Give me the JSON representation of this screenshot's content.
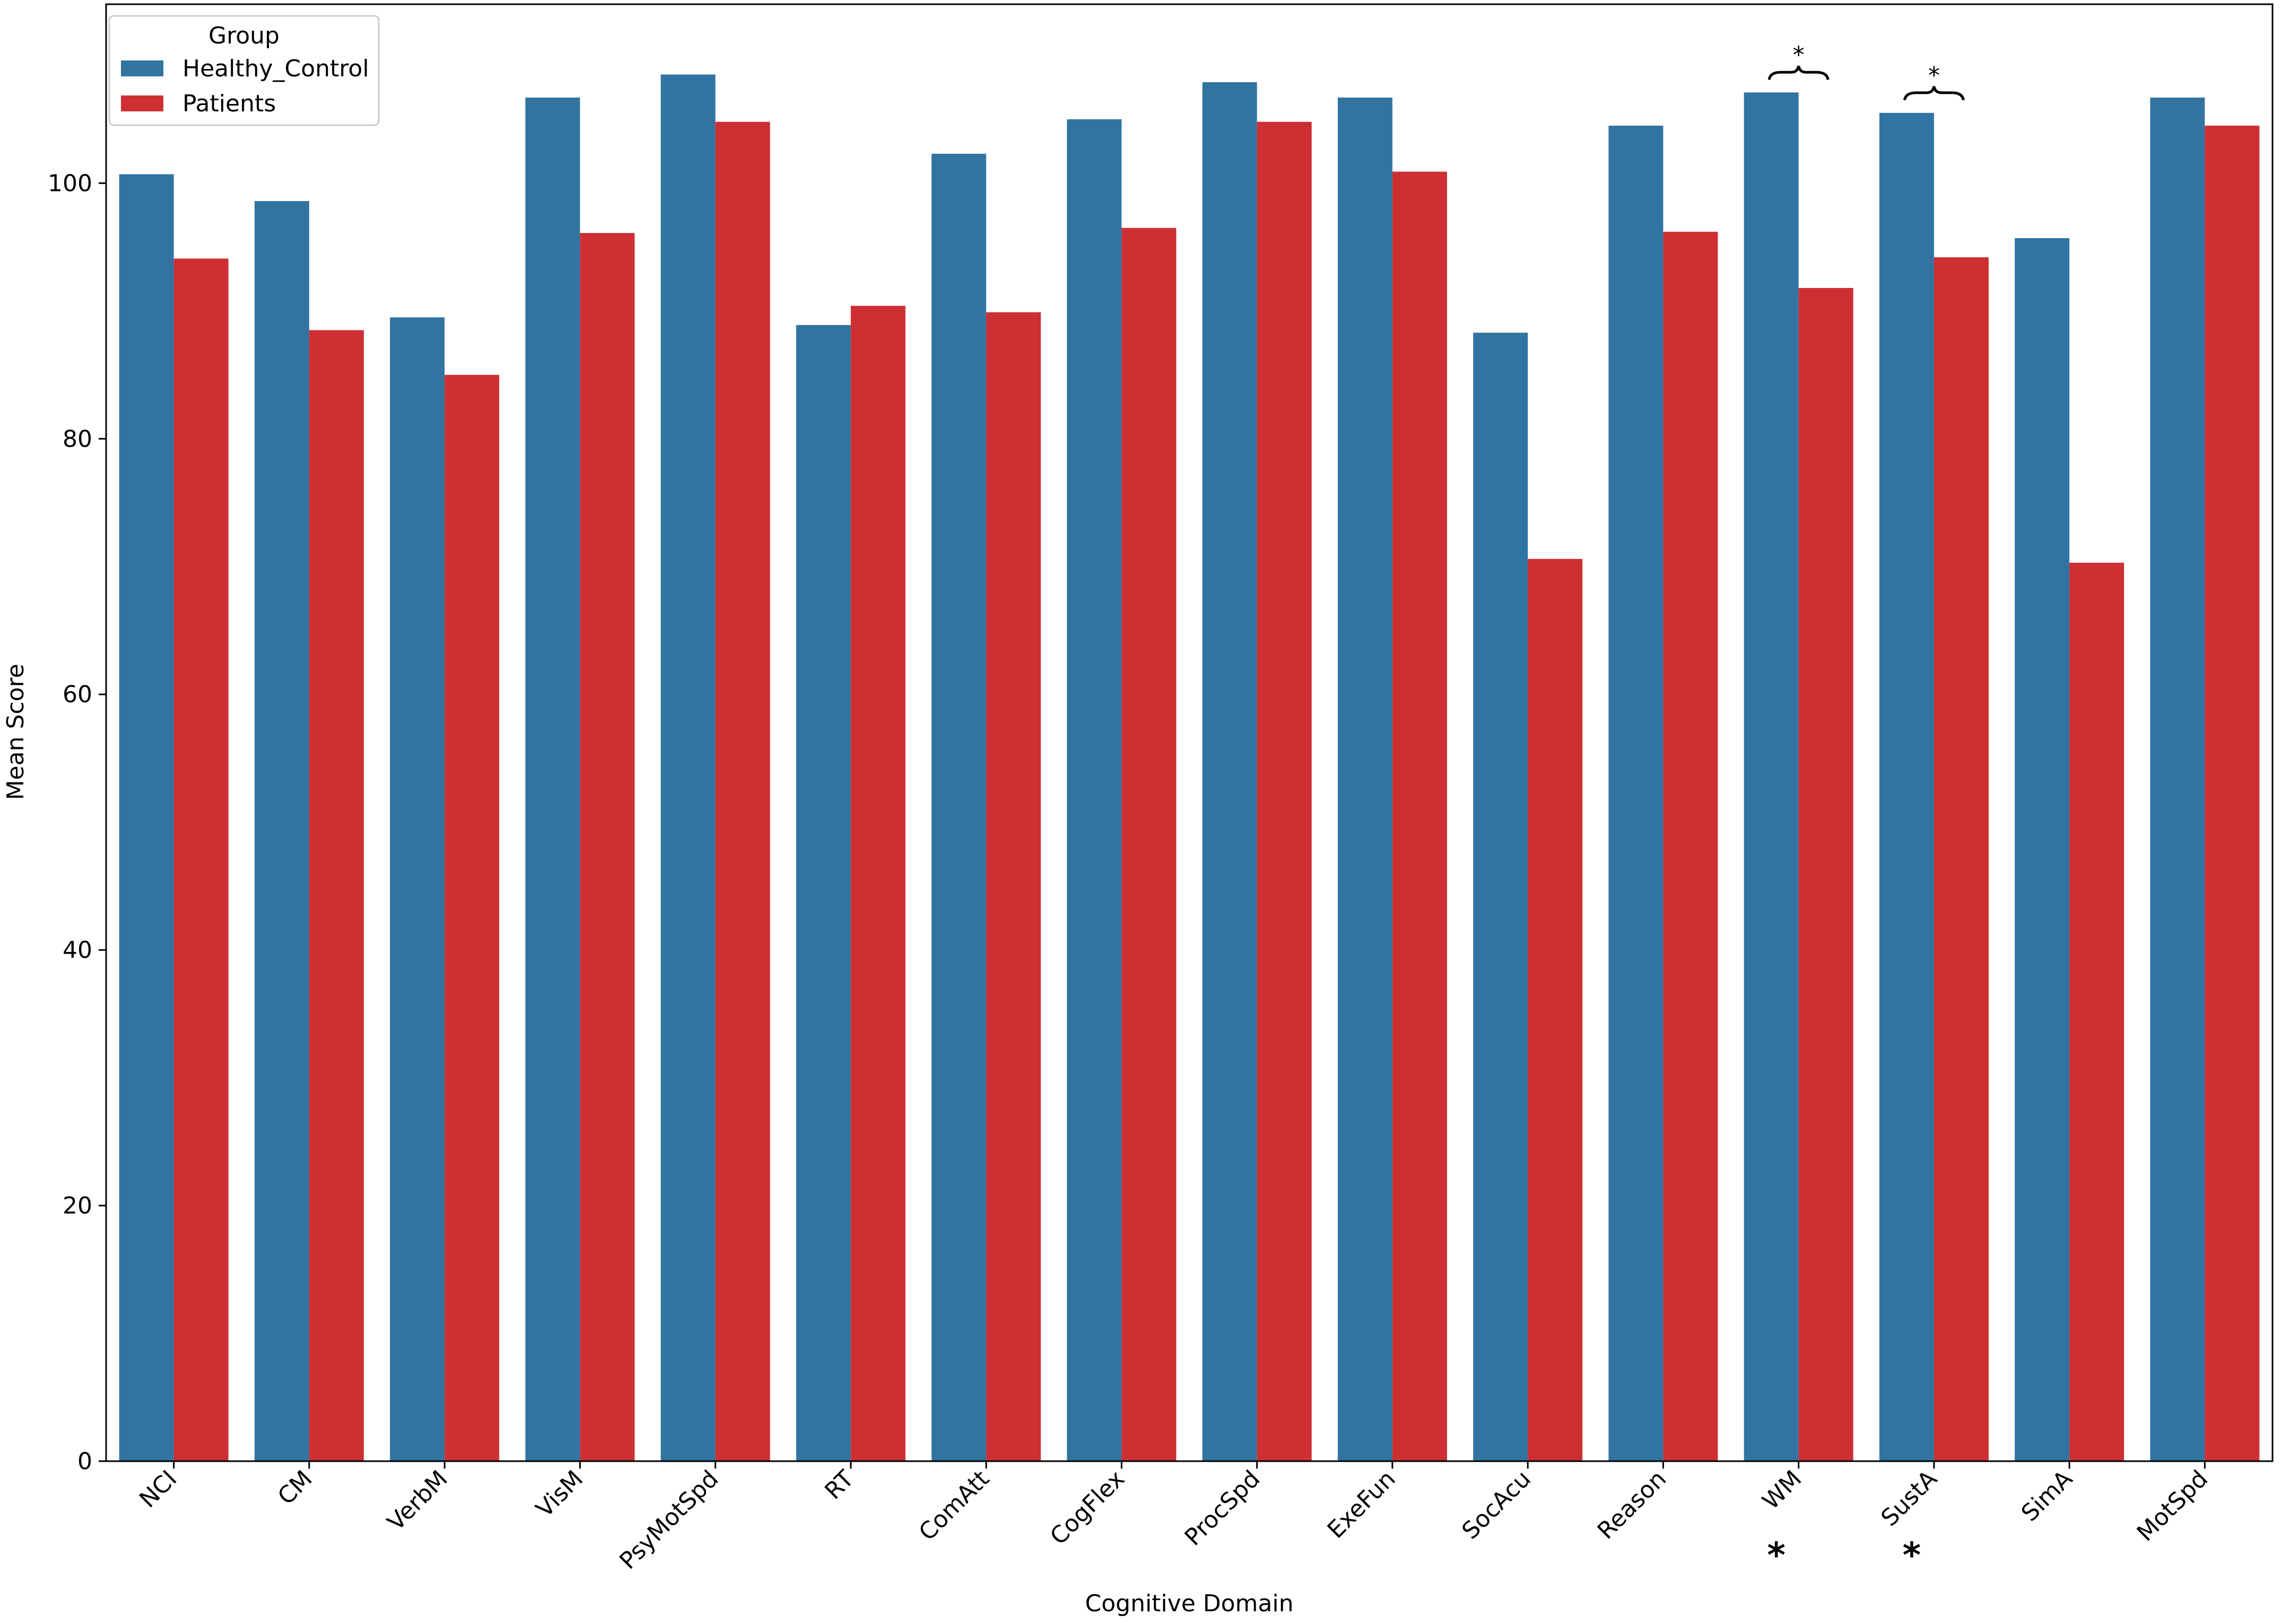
{
  "chart_data": {
    "type": "bar",
    "title": "",
    "xlabel": "Cognitive Domain",
    "ylabel": "Mean Score",
    "ylim": [
      0,
      114
    ],
    "yticks": [
      0,
      20,
      40,
      60,
      80,
      100
    ],
    "grid": false,
    "legend": {
      "title": "Group",
      "placement": "top-left"
    },
    "categories": [
      "NCI",
      "CM",
      "VerbM",
      "VisM",
      "PsyMotSpd",
      "RT",
      "ComAtt",
      "CogFlex",
      "ProcSpd",
      "ExeFun",
      "SocAcu",
      "Reason",
      "WM",
      "SustA",
      "SimA",
      "MotSpd"
    ],
    "series": [
      {
        "name": "Healthy_Control",
        "color": "#3274a1",
        "values": [
          100.7,
          98.6,
          89.5,
          106.7,
          108.5,
          88.9,
          102.3,
          105.0,
          107.9,
          106.7,
          88.3,
          104.5,
          107.1,
          105.5,
          95.7,
          106.7
        ]
      },
      {
        "name": "Patients",
        "color": "#cd2f32",
        "values": [
          94.1,
          88.5,
          85.0,
          96.1,
          104.8,
          90.4,
          89.9,
          96.5,
          104.8,
          100.9,
          70.6,
          96.2,
          91.8,
          94.2,
          70.3,
          104.5
        ]
      }
    ],
    "annotations": [
      {
        "category": "WM",
        "bracket_label": "*",
        "tick_marker": "*"
      },
      {
        "category": "SustA",
        "bracket_label": "*",
        "tick_marker": "*"
      }
    ]
  }
}
